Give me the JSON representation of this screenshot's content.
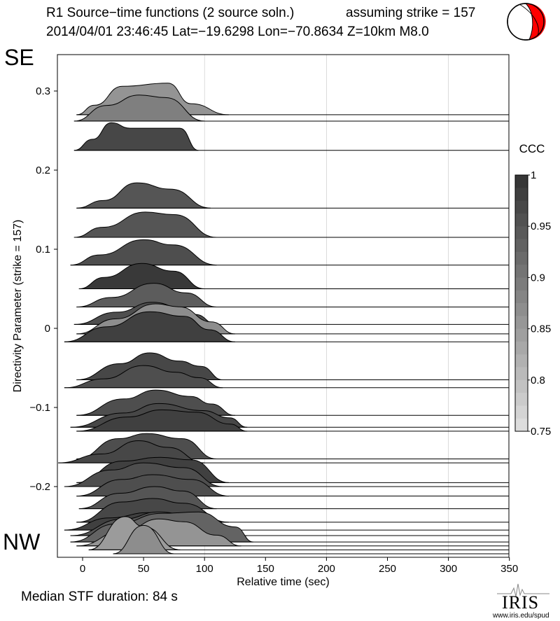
{
  "header": {
    "title_line1": "R1 Source−time functions (2 source soln.)",
    "strike_text": "assuming strike = 157",
    "title_line2": "2014/04/01 23:46:45  Lat=−19.6298 Lon=−70.8634  Z=10km  M8.0"
  },
  "labels": {
    "se": "SE",
    "nw": "NW",
    "median": "Median STF duration: 84 s",
    "iris": "IRIS",
    "iris_url": "www.iris.edu/spud"
  },
  "chart_data": {
    "type": "area",
    "xlabel": "Relative time (sec)",
    "ylabel": "Directivity Parameter (strike = 157)",
    "xlim": [
      -20,
      350
    ],
    "ylim": [
      -0.29,
      0.35
    ],
    "xticks": [
      0,
      50,
      100,
      150,
      200,
      250,
      300,
      350
    ],
    "yticks": [
      0.3,
      0.2,
      0.1,
      0,
      -0.1,
      -0.2
    ],
    "ytick_labels": [
      "0.3",
      "0.2",
      "0.1",
      "0",
      "−0.1",
      "−0.2"
    ],
    "grid_x": [
      100,
      200,
      300
    ],
    "colorbar": {
      "title": "CCC",
      "min": 0.75,
      "max": 1,
      "ticks": [
        1,
        0.95,
        0.9,
        0.85,
        0.8,
        0.75
      ],
      "tick_labels": [
        "1",
        "0.95",
        "0.9",
        "0.85",
        "0.8",
        "0.75"
      ]
    },
    "traces": [
      {
        "dp": 0.27,
        "ccc": 0.86,
        "start": -5,
        "end": 120,
        "amp": 0.04,
        "shape": [
          [
            0,
            0
          ],
          [
            0.12,
            0.3
          ],
          [
            0.3,
            0.9
          ],
          [
            0.6,
            1
          ],
          [
            0.75,
            0.35
          ],
          [
            1,
            0
          ]
        ]
      },
      {
        "dp": 0.262,
        "ccc": 0.89,
        "start": -7,
        "end": 100,
        "amp": 0.033,
        "shape": [
          [
            0,
            0
          ],
          [
            0.25,
            0.6
          ],
          [
            0.5,
            1
          ],
          [
            0.7,
            0.9
          ],
          [
            1,
            0
          ]
        ]
      },
      {
        "dp": 0.225,
        "ccc": 0.97,
        "start": -7,
        "end": 95,
        "amp": 0.035,
        "shape": [
          [
            0,
            0
          ],
          [
            0.15,
            0.4
          ],
          [
            0.3,
            1
          ],
          [
            0.45,
            0.8
          ],
          [
            0.85,
            0.8
          ],
          [
            1,
            0
          ]
        ]
      },
      {
        "dp": 0.152,
        "ccc": 0.95,
        "start": -5,
        "end": 105,
        "amp": 0.032,
        "shape": [
          [
            0,
            0
          ],
          [
            0.2,
            0.3
          ],
          [
            0.45,
            1
          ],
          [
            0.7,
            0.75
          ],
          [
            1,
            0
          ]
        ]
      },
      {
        "dp": 0.115,
        "ccc": 0.95,
        "start": -7,
        "end": 110,
        "amp": 0.032,
        "shape": [
          [
            0,
            0
          ],
          [
            0.2,
            0.4
          ],
          [
            0.5,
            1
          ],
          [
            0.7,
            0.9
          ],
          [
            1,
            0
          ]
        ]
      },
      {
        "dp": 0.08,
        "ccc": 0.96,
        "start": -10,
        "end": 110,
        "amp": 0.032,
        "shape": [
          [
            0,
            0
          ],
          [
            0.2,
            0.4
          ],
          [
            0.5,
            1
          ],
          [
            0.7,
            0.8
          ],
          [
            1,
            0
          ]
        ]
      },
      {
        "dp": 0.05,
        "ccc": 0.99,
        "start": -3,
        "end": 100,
        "amp": 0.032,
        "shape": [
          [
            0,
            0
          ],
          [
            0.2,
            0.45
          ],
          [
            0.5,
            1
          ],
          [
            0.75,
            0.7
          ],
          [
            1,
            0
          ]
        ]
      },
      {
        "dp": 0.027,
        "ccc": 0.94,
        "start": -5,
        "end": 110,
        "amp": 0.03,
        "shape": [
          [
            0,
            0
          ],
          [
            0.25,
            0.4
          ],
          [
            0.55,
            1
          ],
          [
            0.78,
            0.6
          ],
          [
            1,
            0
          ]
        ]
      },
      {
        "dp": 0.005,
        "ccc": 0.96,
        "start": -7,
        "end": 110,
        "amp": 0.028,
        "shape": [
          [
            0,
            0
          ],
          [
            0.3,
            0.55
          ],
          [
            0.55,
            1
          ],
          [
            0.85,
            0.45
          ],
          [
            1,
            0
          ]
        ]
      },
      {
        "dp": -0.007,
        "ccc": 0.87,
        "start": -5,
        "end": 125,
        "amp": 0.038,
        "shape": [
          [
            0,
            0
          ],
          [
            0.25,
            0.5
          ],
          [
            0.5,
            1
          ],
          [
            0.65,
            0.9
          ],
          [
            0.85,
            0.4
          ],
          [
            1,
            0
          ]
        ]
      },
      {
        "dp": -0.017,
        "ccc": 0.98,
        "start": -15,
        "end": 125,
        "amp": 0.038,
        "shape": [
          [
            0,
            0
          ],
          [
            0.25,
            0.5
          ],
          [
            0.5,
            1
          ],
          [
            0.7,
            0.85
          ],
          [
            0.85,
            0.4
          ],
          [
            1,
            0
          ]
        ]
      },
      {
        "dp": -0.065,
        "ccc": 0.97,
        "start": -5,
        "end": 115,
        "amp": 0.034,
        "shape": [
          [
            0,
            0
          ],
          [
            0.3,
            0.6
          ],
          [
            0.5,
            1
          ],
          [
            0.7,
            0.7
          ],
          [
            0.85,
            0.5
          ],
          [
            1,
            0
          ]
        ]
      },
      {
        "dp": -0.075,
        "ccc": 0.96,
        "start": -15,
        "end": 115,
        "amp": 0.028,
        "shape": [
          [
            0,
            0
          ],
          [
            0.25,
            0.4
          ],
          [
            0.5,
            1
          ],
          [
            0.7,
            0.7
          ],
          [
            0.85,
            0.45
          ],
          [
            1,
            0
          ]
        ]
      },
      {
        "dp": -0.11,
        "ccc": 0.96,
        "start": -5,
        "end": 125,
        "amp": 0.032,
        "shape": [
          [
            0,
            0
          ],
          [
            0.3,
            0.65
          ],
          [
            0.5,
            1
          ],
          [
            0.72,
            0.75
          ],
          [
            0.85,
            0.45
          ],
          [
            1,
            0
          ]
        ]
      },
      {
        "dp": -0.125,
        "ccc": 0.97,
        "start": -10,
        "end": 135,
        "amp": 0.03,
        "shape": [
          [
            0,
            0
          ],
          [
            0.3,
            0.6
          ],
          [
            0.5,
            1
          ],
          [
            0.75,
            0.7
          ],
          [
            0.9,
            0.4
          ],
          [
            1,
            0
          ]
        ]
      },
      {
        "dp": -0.13,
        "ccc": 0.98,
        "start": -5,
        "end": 135,
        "amp": 0.03,
        "shape": [
          [
            0,
            0
          ],
          [
            0.3,
            0.6
          ],
          [
            0.5,
            0.9
          ],
          [
            0.7,
            0.8
          ],
          [
            0.9,
            0.3
          ],
          [
            1,
            0
          ]
        ]
      },
      {
        "dp": -0.165,
        "ccc": 0.96,
        "start": -5,
        "end": 110,
        "amp": 0.032,
        "shape": [
          [
            0,
            0
          ],
          [
            0.3,
            0.8
          ],
          [
            0.5,
            1
          ],
          [
            0.75,
            0.8
          ],
          [
            1,
            0
          ]
        ]
      },
      {
        "dp": -0.17,
        "ccc": 0.97,
        "start": -20,
        "end": 100,
        "amp": 0.028,
        "shape": [
          [
            0,
            0
          ],
          [
            0.3,
            0.4
          ],
          [
            0.55,
            1
          ],
          [
            0.75,
            0.7
          ],
          [
            1,
            0
          ]
        ]
      },
      {
        "dp": -0.195,
        "ccc": 0.98,
        "start": -5,
        "end": 120,
        "amp": 0.032,
        "shape": [
          [
            0,
            0
          ],
          [
            0.3,
            0.85
          ],
          [
            0.55,
            1
          ],
          [
            0.75,
            0.9
          ],
          [
            1,
            0
          ]
        ]
      },
      {
        "dp": -0.2,
        "ccc": 0.96,
        "start": -15,
        "end": 115,
        "amp": 0.03,
        "shape": [
          [
            0,
            0
          ],
          [
            0.3,
            0.7
          ],
          [
            0.5,
            1
          ],
          [
            0.75,
            0.8
          ],
          [
            1,
            0
          ]
        ]
      },
      {
        "dp": -0.212,
        "ccc": 0.96,
        "start": -5,
        "end": 120,
        "amp": 0.03,
        "shape": [
          [
            0,
            0
          ],
          [
            0.3,
            0.7
          ],
          [
            0.5,
            0.9
          ],
          [
            0.75,
            0.7
          ],
          [
            1,
            0
          ]
        ]
      },
      {
        "dp": -0.228,
        "ccc": 0.95,
        "start": -3,
        "end": 110,
        "amp": 0.028,
        "shape": [
          [
            0,
            0
          ],
          [
            0.3,
            0.7
          ],
          [
            0.55,
            1
          ],
          [
            0.75,
            0.8
          ],
          [
            1,
            0
          ]
        ]
      },
      {
        "dp": -0.245,
        "ccc": 0.97,
        "start": -5,
        "end": 120,
        "amp": 0.03,
        "shape": [
          [
            0,
            0
          ],
          [
            0.3,
            0.85
          ],
          [
            0.5,
            1
          ],
          [
            0.7,
            0.8
          ],
          [
            1,
            0
          ]
        ]
      },
      {
        "dp": -0.255,
        "ccc": 0.98,
        "start": -15,
        "end": 110,
        "amp": 0.022,
        "shape": [
          [
            0,
            0
          ],
          [
            0.3,
            0.7
          ],
          [
            0.55,
            1
          ],
          [
            0.8,
            0.5
          ],
          [
            1,
            0
          ]
        ]
      },
      {
        "dp": -0.262,
        "ccc": 0.95,
        "start": -10,
        "end": 135,
        "amp": 0.03,
        "shape": [
          [
            0,
            0
          ],
          [
            0.3,
            0.7
          ],
          [
            0.5,
            1
          ],
          [
            0.7,
            0.8
          ],
          [
            1,
            0
          ]
        ]
      },
      {
        "dp": -0.27,
        "ccc": 0.93,
        "start": -10,
        "end": 140,
        "amp": 0.038,
        "shape": [
          [
            0,
            0
          ],
          [
            0.25,
            0.6
          ],
          [
            0.5,
            0.95
          ],
          [
            0.7,
            1
          ],
          [
            0.9,
            0.5
          ],
          [
            1,
            0
          ]
        ]
      },
      {
        "dp": -0.275,
        "ccc": 0.86,
        "start": -5,
        "end": 130,
        "amp": 0.034,
        "shape": [
          [
            0,
            0
          ],
          [
            0.3,
            0.6
          ],
          [
            0.5,
            1
          ],
          [
            0.65,
            0.9
          ],
          [
            0.85,
            0.4
          ],
          [
            1,
            0
          ]
        ]
      },
      {
        "dp": -0.28,
        "ccc": 0.85,
        "start": 5,
        "end": 80,
        "amp": 0.042,
        "shape": [
          [
            0,
            0
          ],
          [
            0.4,
            1
          ],
          [
            0.6,
            0.7
          ],
          [
            1,
            0
          ]
        ]
      },
      {
        "dp": -0.285,
        "ccc": 0.87,
        "start": 25,
        "end": 75,
        "amp": 0.036,
        "shape": [
          [
            0,
            0
          ],
          [
            0.5,
            1
          ],
          [
            1,
            0
          ]
        ]
      }
    ]
  },
  "beachball": {
    "fill_color": "#ff0000",
    "line_color": "#000000"
  }
}
